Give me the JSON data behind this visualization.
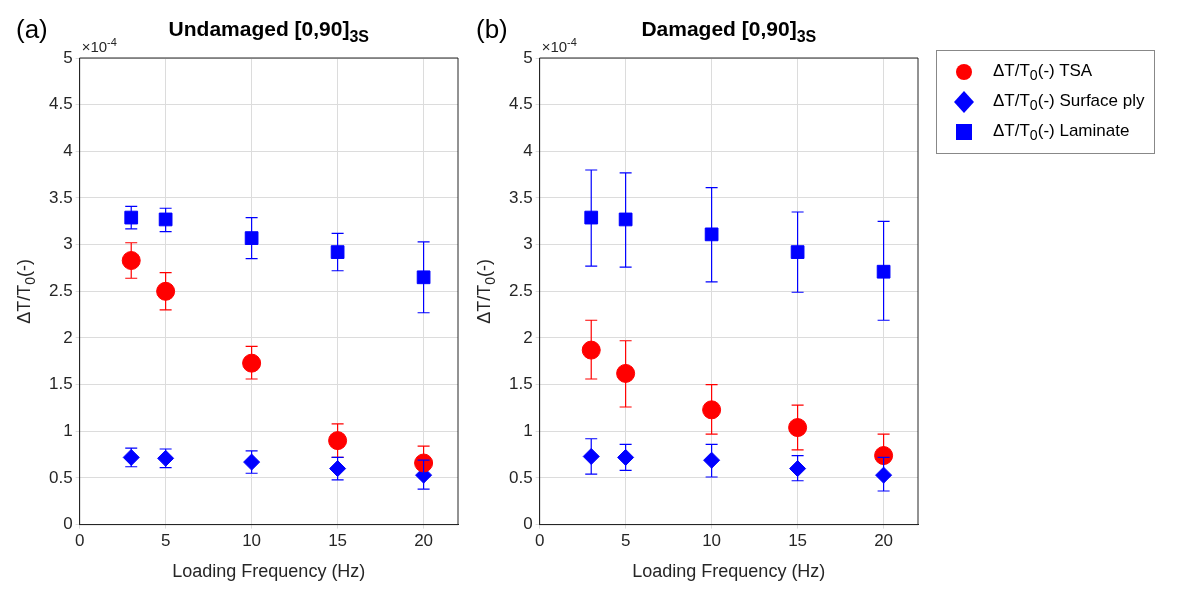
{
  "chart_data": [
    {
      "type": "scatter",
      "title": "Undamaged [0,90]$_{3S}$",
      "xlabel": "Loading Frequency (Hz)",
      "ylabel": "ΔT/T$_{0}$(-)",
      "annotations": [
        "(a)",
        "×10$^{-4}$"
      ],
      "x": [
        3,
        5,
        10,
        15,
        20
      ],
      "xlim": [
        0,
        22
      ],
      "xticks": [
        0,
        5,
        10,
        15,
        20
      ],
      "ylim": [
        0,
        5
      ],
      "yticks": [
        0,
        0.5,
        1,
        1.5,
        2,
        2.5,
        3,
        3.5,
        4,
        4.5,
        5
      ],
      "grid": true,
      "series": [
        {
          "color": "#ff0000",
          "marker": "circle",
          "values": [
            2.83,
            2.5,
            1.73,
            0.9,
            0.66
          ],
          "errors": [
            [
              2.64,
              3.02
            ],
            [
              2.3,
              2.7
            ],
            [
              1.56,
              1.91
            ],
            [
              0.72,
              1.08
            ],
            [
              0.66,
              0.84
            ]
          ]
        },
        {
          "color": "#0000ff",
          "marker": "diamond",
          "values": [
            0.72,
            0.71,
            0.67,
            0.6,
            0.53
          ],
          "errors": [
            [
              0.62,
              0.82
            ],
            [
              0.61,
              0.81
            ],
            [
              0.55,
              0.79
            ],
            [
              0.48,
              0.72
            ],
            [
              0.38,
              0.69
            ]
          ]
        },
        {
          "color": "#0000ff",
          "marker": "square",
          "values": [
            3.29,
            3.27,
            3.07,
            2.92,
            2.65
          ],
          "errors": [
            [
              3.17,
              3.41
            ],
            [
              3.14,
              3.39
            ],
            [
              2.85,
              3.29
            ],
            [
              2.72,
              3.12
            ],
            [
              2.27,
              3.03
            ]
          ]
        }
      ]
    },
    {
      "type": "scatter",
      "title": "Damaged [0,90]$_{3S}$",
      "xlabel": "Loading Frequency (Hz)",
      "ylabel": "ΔT/T$_{0}$(-)",
      "annotations": [
        "(b)",
        "×10$^{-4}$"
      ],
      "x": [
        3,
        5,
        10,
        15,
        20
      ],
      "xlim": [
        0,
        22
      ],
      "xticks": [
        0,
        5,
        10,
        15,
        20
      ],
      "ylim": [
        0,
        5
      ],
      "yticks": [
        0,
        0.5,
        1,
        1.5,
        2,
        2.5,
        3,
        3.5,
        4,
        4.5,
        5
      ],
      "grid": true,
      "legend": "right",
      "series": [
        {
          "name": "ΔT/T$_{0}$(-) TSA",
          "color": "#ff0000",
          "marker": "circle",
          "values": [
            1.87,
            1.62,
            1.23,
            1.04,
            0.74
          ],
          "errors": [
            [
              1.56,
              2.19
            ],
            [
              1.26,
              1.97
            ],
            [
              0.97,
              1.5
            ],
            [
              0.8,
              1.28
            ],
            [
              0.74,
              0.97
            ]
          ]
        },
        {
          "name": "ΔT/T$_{0}$(-) Surface ply",
          "color": "#0000ff",
          "marker": "diamond",
          "values": [
            0.73,
            0.72,
            0.69,
            0.6,
            0.53
          ],
          "errors": [
            [
              0.54,
              0.92
            ],
            [
              0.58,
              0.86
            ],
            [
              0.51,
              0.86
            ],
            [
              0.47,
              0.74
            ],
            [
              0.36,
              0.72
            ]
          ]
        },
        {
          "name": "ΔT/T$_{0}$(-) Laminate",
          "color": "#0000ff",
          "marker": "square",
          "values": [
            3.29,
            3.27,
            3.11,
            2.92,
            2.71
          ],
          "errors": [
            [
              2.77,
              3.8
            ],
            [
              2.76,
              3.77
            ],
            [
              2.6,
              3.61
            ],
            [
              2.49,
              3.35
            ],
            [
              2.19,
              3.25
            ]
          ]
        }
      ]
    }
  ]
}
